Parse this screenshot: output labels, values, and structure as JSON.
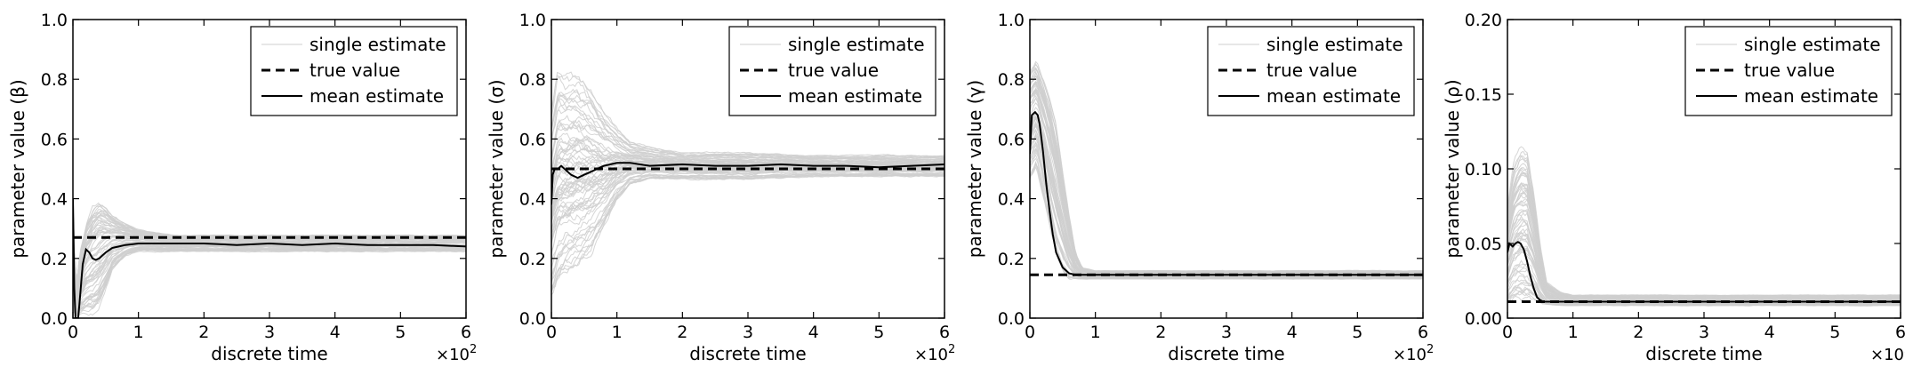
{
  "figure": {
    "panel_count": 4
  },
  "chart_data": [
    {
      "type": "line",
      "xlabel": "discrete time",
      "ylabel": "parameter value (β)",
      "x_multiplier": "×10",
      "x_multiplier_exp": "2",
      "xlim": [
        0,
        6
      ],
      "ylim": [
        0,
        1.0
      ],
      "xticks": [
        "0",
        "1",
        "2",
        "3",
        "4",
        "5",
        "6"
      ],
      "yticks": [
        "0.0",
        "0.2",
        "0.4",
        "0.6",
        "0.8",
        "1.0"
      ],
      "ytick_values": [
        0.0,
        0.2,
        0.4,
        0.6,
        0.8,
        1.0
      ],
      "legend": [
        "single estimate",
        "true value",
        "mean estimate"
      ],
      "legend_position": "top-right",
      "true_value": 0.27,
      "single_estimate_band": {
        "x": [
          0,
          0.05,
          0.1,
          0.2,
          0.3,
          0.4,
          0.5,
          0.6,
          0.8,
          1.0,
          1.5,
          2,
          3,
          4,
          5,
          6
        ],
        "low": [
          0,
          0,
          0,
          0,
          0,
          0.02,
          0.08,
          0.15,
          0.2,
          0.22,
          0.22,
          0.22,
          0.22,
          0.22,
          0.22,
          0.22
        ],
        "high": [
          0.4,
          0.1,
          0.22,
          0.33,
          0.38,
          0.4,
          0.38,
          0.35,
          0.32,
          0.3,
          0.28,
          0.28,
          0.28,
          0.28,
          0.28,
          0.28
        ]
      },
      "series": [
        {
          "name": "mean estimate",
          "x": [
            0,
            0.02,
            0.04,
            0.05,
            0.08,
            0.1,
            0.15,
            0.2,
            0.25,
            0.3,
            0.35,
            0.4,
            0.45,
            0.5,
            0.6,
            0.7,
            0.8,
            1.0,
            1.5,
            2,
            2.5,
            3,
            3.5,
            4,
            4.5,
            5,
            5.5,
            6
          ],
          "y": [
            0.4,
            0.1,
            0.0,
            0.0,
            0.0,
            0.05,
            0.18,
            0.23,
            0.22,
            0.2,
            0.195,
            0.2,
            0.21,
            0.22,
            0.235,
            0.24,
            0.245,
            0.25,
            0.25,
            0.25,
            0.245,
            0.25,
            0.245,
            0.25,
            0.245,
            0.245,
            0.245,
            0.24
          ]
        }
      ]
    },
    {
      "type": "line",
      "xlabel": "discrete time",
      "ylabel": "parameter value (σ)",
      "x_multiplier": "×10",
      "x_multiplier_exp": "2",
      "xlim": [
        0,
        6
      ],
      "ylim": [
        0,
        1.0
      ],
      "xticks": [
        "0",
        "1",
        "2",
        "3",
        "4",
        "5",
        "6"
      ],
      "yticks": [
        "0.0",
        "0.2",
        "0.4",
        "0.6",
        "0.8",
        "1.0"
      ],
      "ytick_values": [
        0.0,
        0.2,
        0.4,
        0.6,
        0.8,
        1.0
      ],
      "legend": [
        "single estimate",
        "true value",
        "mean estimate"
      ],
      "legend_position": "top-right",
      "true_value": 0.5,
      "single_estimate_band": {
        "x": [
          0,
          0.1,
          0.2,
          0.4,
          0.6,
          0.8,
          1.0,
          1.2,
          1.5,
          2,
          3,
          4,
          5,
          6
        ],
        "low": [
          0.03,
          0.08,
          0.12,
          0.15,
          0.2,
          0.28,
          0.38,
          0.44,
          0.46,
          0.46,
          0.46,
          0.47,
          0.47,
          0.47
        ],
        "high": [
          0.75,
          0.88,
          0.85,
          0.85,
          0.8,
          0.72,
          0.65,
          0.6,
          0.58,
          0.56,
          0.56,
          0.55,
          0.55,
          0.55
        ]
      },
      "series": [
        {
          "name": "mean estimate",
          "x": [
            0,
            0.02,
            0.05,
            0.1,
            0.15,
            0.2,
            0.3,
            0.4,
            0.5,
            0.6,
            0.8,
            1.0,
            1.2,
            1.5,
            2,
            2.5,
            3,
            3.5,
            4,
            4.5,
            5,
            5.5,
            6
          ],
          "y": [
            0.38,
            0.48,
            0.5,
            0.5,
            0.51,
            0.5,
            0.48,
            0.47,
            0.48,
            0.49,
            0.51,
            0.52,
            0.52,
            0.51,
            0.515,
            0.51,
            0.51,
            0.515,
            0.51,
            0.51,
            0.505,
            0.51,
            0.515
          ]
        }
      ]
    },
    {
      "type": "line",
      "xlabel": "discrete time",
      "ylabel": "parameter value (γ)",
      "x_multiplier": "×10",
      "x_multiplier_exp": "2",
      "xlim": [
        0,
        6
      ],
      "ylim": [
        0,
        1.0
      ],
      "xticks": [
        "0",
        "1",
        "2",
        "3",
        "4",
        "5",
        "6"
      ],
      "yticks": [
        "0.0",
        "0.2",
        "0.4",
        "0.6",
        "0.8",
        "1.0"
      ],
      "ytick_values": [
        0.0,
        0.2,
        0.4,
        0.6,
        0.8,
        1.0
      ],
      "legend": [
        "single estimate",
        "true value",
        "mean estimate"
      ],
      "legend_position": "top-right",
      "true_value": 0.145,
      "single_estimate_band": {
        "x": [
          0,
          0.1,
          0.2,
          0.3,
          0.4,
          0.5,
          0.6,
          0.7,
          0.8,
          1.0,
          2,
          3,
          4,
          5,
          6
        ],
        "low": [
          0.45,
          0.5,
          0.4,
          0.3,
          0.2,
          0.15,
          0.13,
          0.13,
          0.13,
          0.13,
          0.13,
          0.13,
          0.13,
          0.13,
          0.13
        ],
        "high": [
          0.85,
          0.88,
          0.82,
          0.75,
          0.65,
          0.5,
          0.35,
          0.22,
          0.17,
          0.16,
          0.16,
          0.16,
          0.16,
          0.16,
          0.16
        ]
      },
      "series": [
        {
          "name": "mean estimate",
          "x": [
            0,
            0.03,
            0.08,
            0.12,
            0.15,
            0.2,
            0.25,
            0.3,
            0.35,
            0.4,
            0.5,
            0.6,
            0.7,
            0.8,
            1.0,
            1.5,
            2,
            3,
            4,
            5,
            6
          ],
          "y": [
            0.55,
            0.68,
            0.69,
            0.68,
            0.65,
            0.56,
            0.45,
            0.36,
            0.28,
            0.22,
            0.17,
            0.15,
            0.145,
            0.145,
            0.145,
            0.145,
            0.145,
            0.145,
            0.145,
            0.145,
            0.145
          ]
        }
      ]
    },
    {
      "type": "line",
      "xlabel": "discrete time",
      "ylabel": "parameter value (ρ)",
      "x_multiplier": "×10",
      "x_multiplier_exp": "2",
      "xlim": [
        0,
        6
      ],
      "ylim": [
        0,
        0.2
      ],
      "xticks": [
        "0",
        "1",
        "2",
        "3",
        "4",
        "5",
        "6"
      ],
      "yticks": [
        "0.00",
        "0.05",
        "0.10",
        "0.15",
        "0.20"
      ],
      "ytick_values": [
        0.0,
        0.05,
        0.1,
        0.15,
        0.2
      ],
      "legend": [
        "single estimate",
        "true value",
        "mean estimate"
      ],
      "legend_position": "top-right",
      "true_value": 0.011,
      "single_estimate_band": {
        "x": [
          0,
          0.1,
          0.2,
          0.3,
          0.4,
          0.5,
          0.6,
          0.8,
          1.0,
          2,
          3,
          4,
          5,
          6
        ],
        "low": [
          0.005,
          0.008,
          0.008,
          0.008,
          0.008,
          0.008,
          0.008,
          0.008,
          0.008,
          0.008,
          0.008,
          0.008,
          0.008,
          0.008
        ],
        "high": [
          0.08,
          0.11,
          0.12,
          0.118,
          0.09,
          0.05,
          0.025,
          0.018,
          0.016,
          0.016,
          0.016,
          0.016,
          0.016,
          0.016
        ]
      },
      "series": [
        {
          "name": "mean estimate",
          "x": [
            0,
            0.03,
            0.08,
            0.12,
            0.16,
            0.2,
            0.25,
            0.3,
            0.35,
            0.4,
            0.45,
            0.5,
            0.55,
            0.6,
            0.8,
            1.0,
            2,
            3,
            4,
            5,
            6
          ],
          "y": [
            0.044,
            0.05,
            0.048,
            0.05,
            0.051,
            0.05,
            0.046,
            0.038,
            0.028,
            0.02,
            0.014,
            0.012,
            0.011,
            0.011,
            0.011,
            0.011,
            0.011,
            0.011,
            0.011,
            0.011,
            0.011
          ]
        }
      ]
    }
  ]
}
